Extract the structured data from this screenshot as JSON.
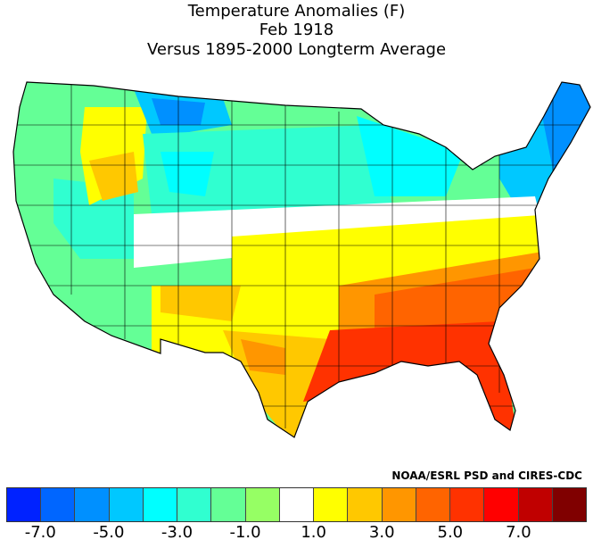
{
  "title": {
    "line1": "Temperature Anomalies (F)",
    "line2": "Feb 1918",
    "line3": "Versus 1895-2000 Longterm Average"
  },
  "credit": "NOAA/ESRL PSD and CIRES-CDC",
  "legend": {
    "colors": [
      "#0022ff",
      "#0066ff",
      "#0090ff",
      "#00c8ff",
      "#00ffff",
      "#30ffd0",
      "#64ff96",
      "#96ff64",
      "#ffffff",
      "#ffff00",
      "#ffc800",
      "#ff9600",
      "#ff6400",
      "#ff3200",
      "#ff0000",
      "#c00000",
      "#800000"
    ],
    "tick_labels": [
      "-7.0",
      "-5.0",
      "-3.0",
      "-1.0",
      "1.0",
      "3.0",
      "5.0",
      "7.0"
    ]
  }
}
